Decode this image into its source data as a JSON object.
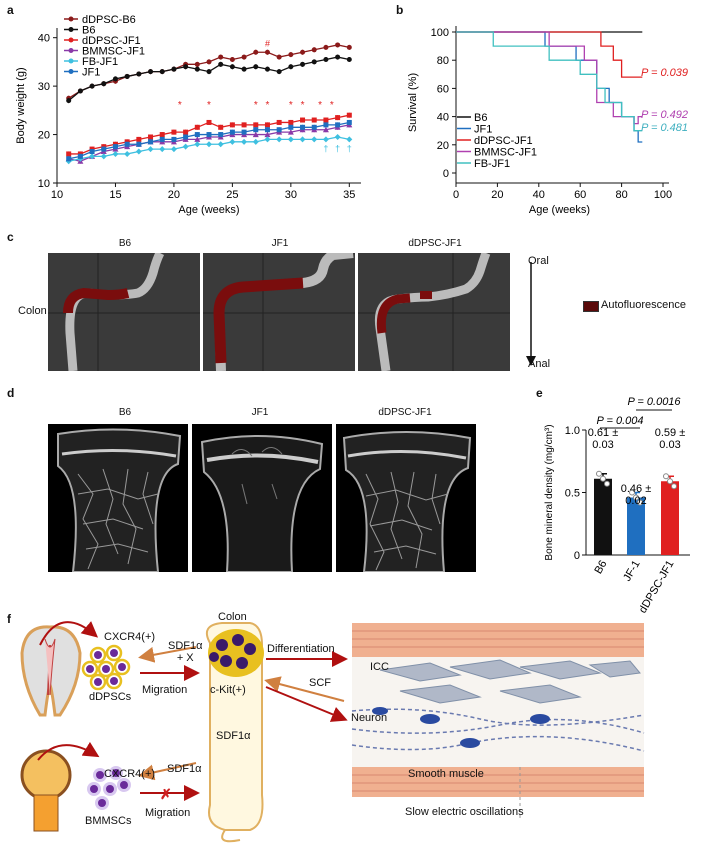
{
  "panel_labels": {
    "a": "a",
    "b": "b",
    "c": "c",
    "d": "d",
    "e": "e",
    "f": "f"
  },
  "chart_data": [
    {
      "type": "line",
      "panel": "a",
      "xlabel": "Age (weeks)",
      "ylabel": "Body weight (g)",
      "xlim": [
        10,
        36
      ],
      "ylim": [
        10,
        42
      ],
      "xticks": [
        10,
        15,
        20,
        25,
        30,
        35
      ],
      "yticks": [
        10,
        20,
        30,
        40
      ],
      "legend_position": "top-left",
      "x": [
        11,
        12,
        13,
        14,
        15,
        16,
        17,
        18,
        19,
        20,
        21,
        22,
        23,
        24,
        25,
        26,
        27,
        28,
        29,
        30,
        31,
        32,
        33,
        34,
        35
      ],
      "series": [
        {
          "name": "dDPSC-B6",
          "color": "#8b1a1a",
          "marker": "circle",
          "values": [
            27.5,
            29,
            30,
            30.5,
            31,
            32,
            32.5,
            33,
            33,
            33.5,
            34.5,
            34.5,
            35,
            36,
            35.5,
            36,
            37,
            37,
            36,
            36.5,
            37,
            37.5,
            38,
            38.5,
            38
          ]
        },
        {
          "name": "B6",
          "color": "#111111",
          "marker": "circle",
          "values": [
            27,
            29,
            30,
            30.5,
            31.5,
            32,
            32.5,
            33,
            33,
            33.5,
            34,
            33.5,
            33,
            34.5,
            34,
            33.5,
            34,
            33.5,
            33,
            34,
            34.5,
            35,
            35.5,
            36,
            35.5
          ]
        },
        {
          "name": "dDPSC-JF1",
          "color": "#e02020",
          "marker": "square",
          "values": [
            16,
            16,
            17,
            17.5,
            18,
            18.5,
            19,
            19.5,
            20,
            20.5,
            20.5,
            21.5,
            22.5,
            21.5,
            22,
            22,
            22,
            22,
            22.5,
            22.5,
            23,
            23,
            23,
            23.5,
            24
          ]
        },
        {
          "name": "BMMSC-JF1",
          "color": "#8a3aa8",
          "marker": "triangle",
          "values": [
            15,
            14.5,
            15.5,
            16.5,
            17,
            17.5,
            18,
            18.5,
            18.5,
            18.5,
            19,
            19,
            19.5,
            19.5,
            20,
            20,
            20,
            20,
            20.5,
            20.5,
            21,
            21,
            21,
            21.5,
            22
          ]
        },
        {
          "name": "FB-JF1",
          "color": "#3fc0e0",
          "marker": "diamond",
          "values": [
            14.5,
            15,
            15.5,
            15.5,
            16,
            16,
            16.5,
            17,
            17,
            17,
            17.5,
            18,
            18,
            18,
            18.5,
            18.5,
            18.5,
            19,
            19,
            19,
            19,
            19,
            19,
            19.5,
            19
          ]
        },
        {
          "name": "JF1",
          "color": "#1f6fc0",
          "marker": "square",
          "values": [
            15,
            15.5,
            16.5,
            17,
            17.5,
            18,
            18,
            18.5,
            19,
            19,
            19.5,
            20,
            20,
            20,
            20.5,
            20.5,
            21,
            21,
            21,
            21.5,
            21.5,
            21.5,
            22,
            22,
            22.5
          ]
        }
      ],
      "annotations": {
        "star_red": "*",
        "hash_red": "#",
        "dagger_cyan": "†"
      }
    },
    {
      "type": "line",
      "panel": "b",
      "xlabel": "Age (weeks)",
      "ylabel": "Survival (%)",
      "xlim": [
        0,
        100
      ],
      "ylim": [
        0,
        100
      ],
      "xticks": [
        0,
        20,
        40,
        60,
        80,
        100
      ],
      "yticks": [
        0,
        20,
        40,
        60,
        80,
        100
      ],
      "legend_position": "bottom-left",
      "series": [
        {
          "name": "B6",
          "color": "#111111",
          "points": [
            [
              0,
              100
            ],
            [
              90,
              100
            ]
          ]
        },
        {
          "name": "JF1",
          "color": "#1f6fc0",
          "points": [
            [
              0,
              100
            ],
            [
              43,
              100
            ],
            [
              43,
              90
            ],
            [
              58,
              90
            ],
            [
              58,
              80
            ],
            [
              68,
              80
            ],
            [
              68,
              60
            ],
            [
              74,
              60
            ],
            [
              74,
              50
            ],
            [
              80,
              50
            ],
            [
              80,
              40
            ],
            [
              86,
              40
            ],
            [
              86,
              30
            ],
            [
              88,
              30
            ],
            [
              88,
              22
            ],
            [
              90,
              22
            ]
          ]
        },
        {
          "name": "dDPSC-JF1",
          "color": "#e02020",
          "points": [
            [
              0,
              100
            ],
            [
              70,
              100
            ],
            [
              70,
              90
            ],
            [
              76,
              90
            ],
            [
              76,
              80
            ],
            [
              80,
              80
            ],
            [
              80,
              68
            ],
            [
              90,
              68
            ]
          ]
        },
        {
          "name": "BMMSC-JF1",
          "color": "#b040b0",
          "points": [
            [
              0,
              100
            ],
            [
              45,
              100
            ],
            [
              45,
              90
            ],
            [
              62,
              90
            ],
            [
              62,
              80
            ],
            [
              68,
              80
            ],
            [
              68,
              50
            ],
            [
              76,
              50
            ],
            [
              76,
              40
            ],
            [
              86,
              40
            ],
            [
              86,
              35
            ],
            [
              88,
              35
            ],
            [
              88,
              40
            ],
            [
              90,
              40
            ]
          ]
        },
        {
          "name": "FB-JF1",
          "color": "#40c0c0",
          "points": [
            [
              0,
              100
            ],
            [
              18,
              100
            ],
            [
              18,
              90
            ],
            [
              45,
              90
            ],
            [
              45,
              80
            ],
            [
              60,
              80
            ],
            [
              60,
              70
            ],
            [
              68,
              70
            ],
            [
              68,
              60
            ],
            [
              72,
              60
            ],
            [
              72,
              50
            ],
            [
              80,
              50
            ],
            [
              80,
              40
            ],
            [
              86,
              40
            ],
            [
              86,
              30
            ],
            [
              90,
              30
            ]
          ]
        }
      ],
      "pvalues": [
        {
          "text": "P = 0.039",
          "color": "#e02020"
        },
        {
          "text": "P = 0.492",
          "color": "#b040b0"
        },
        {
          "text": "P = 0.481",
          "color": "#40b0c0"
        }
      ]
    },
    {
      "type": "bar",
      "panel": "e",
      "ylabel": "Bone mineral density (mg/cm³)",
      "ylim": [
        0,
        1.0
      ],
      "yticks": [
        0,
        0.5,
        1.0
      ],
      "ytick_labels": [
        "0",
        "0.5",
        "1.0"
      ],
      "categories": [
        "B6",
        "JF-1",
        "dDPSC-JF1"
      ],
      "values": [
        0.61,
        0.46,
        0.59
      ],
      "colors": [
        "#111111",
        "#1f6fc0",
        "#e02020"
      ],
      "value_labels": [
        "0.61 ±\n0.03",
        "0.46 ±\n0.02",
        "0.59 ±\n0.03"
      ],
      "pvalues": [
        {
          "text": "P = 0.004"
        },
        {
          "text": "P = 0.0016"
        }
      ]
    }
  ],
  "panel_c": {
    "titles": [
      "B6",
      "JF1",
      "dDPSC-JF1"
    ],
    "row_label": "Colon",
    "axis_top": "Oral",
    "axis_bottom": "Anal",
    "legend": "Autofluorescence"
  },
  "panel_d": {
    "titles": [
      "B6",
      "JF1",
      "dDPSC-JF1"
    ]
  },
  "panel_f": {
    "cxcr4_top": "CXCR4(+)",
    "dpsc": "dDPSCs",
    "sdf_x": "SDF1α\n+ X",
    "migration_top": "Migration",
    "colon": "Colon",
    "ckit": "c-Kit(+)",
    "sdf_colon": "SDF1α",
    "differentiation": "Differentiation",
    "scf": "SCF",
    "icc": "ICC",
    "neuron": "Neuron",
    "smooth_muscle": "Smooth muscle",
    "slow": "Slow electric oscillations",
    "cxcr4_bottom": "CXCR4(+)",
    "bmmsc": "BMMSCs",
    "sdf_bottom": "SDF1α",
    "migration_bottom": "Migration"
  }
}
